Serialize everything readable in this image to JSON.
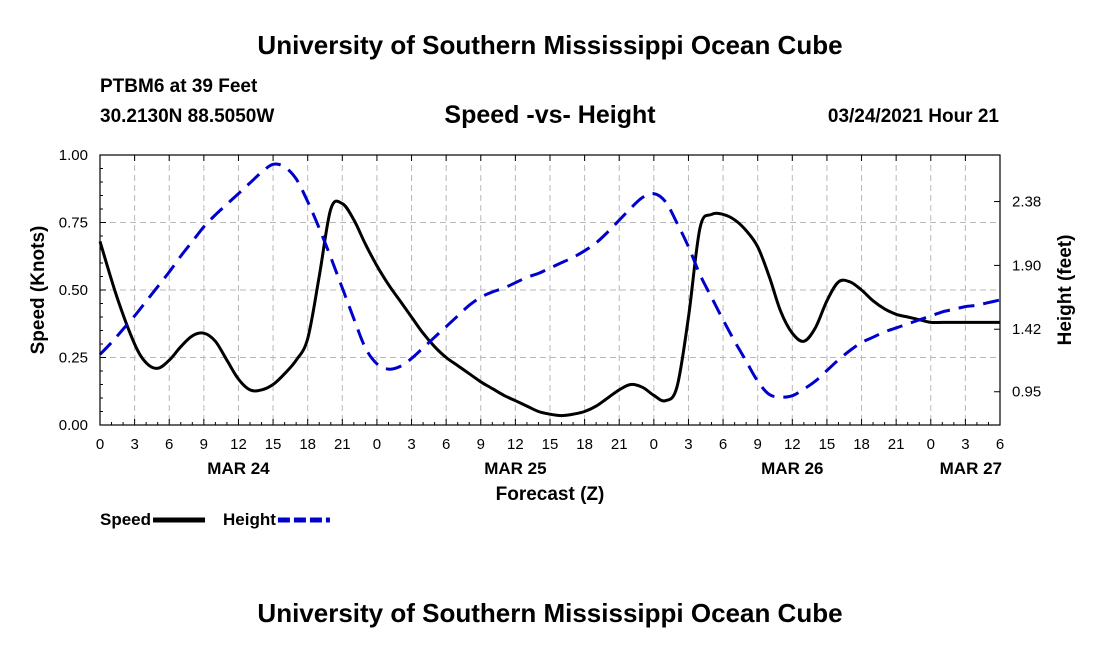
{
  "header": {
    "title": "University of Southern Mississippi Ocean Cube",
    "station": "PTBM6 at 39 Feet",
    "coordinates": "30.2130N 88.5050W",
    "subtitle": "Speed -vs- Height",
    "datetime": "03/24/2021 Hour 21"
  },
  "footer": {
    "title": "University of Southern Mississippi Ocean Cube"
  },
  "chart_data": {
    "type": "line",
    "title": "Speed -vs- Height",
    "xlabel": "Forecast (Z)",
    "ylabel_left": "Speed (Knots)",
    "ylabel_right": "Height (feet)",
    "x_unit": "hours from MAR 24 00Z",
    "xlim": [
      0,
      78
    ],
    "ylim_left": [
      0,
      1
    ],
    "ylim_right": [
      0.7,
      2.73
    ],
    "x_ticks": [
      0,
      3,
      6,
      9,
      12,
      15,
      18,
      21,
      24,
      27,
      30,
      33,
      36,
      39,
      42,
      45,
      48,
      51,
      54,
      57,
      60,
      63,
      66,
      69,
      72,
      75,
      78
    ],
    "x_tick_labels": [
      "0",
      "3",
      "6",
      "9",
      "12",
      "15",
      "18",
      "21",
      "0",
      "3",
      "6",
      "9",
      "12",
      "15",
      "18",
      "21",
      "0",
      "3",
      "6",
      "9",
      "12",
      "15",
      "18",
      "21",
      "0",
      "3",
      "6"
    ],
    "date_labels": [
      {
        "x": 12,
        "label": "MAR 24"
      },
      {
        "x": 36,
        "label": "MAR 25"
      },
      {
        "x": 60,
        "label": "MAR 26"
      },
      {
        "x": 78,
        "label": "MAR 27"
      }
    ],
    "y_left_ticks": [
      0,
      0.25,
      0.5,
      0.75,
      1.0
    ],
    "y_left_tick_labels": [
      "0.00",
      "0.25",
      "0.50",
      "0.75",
      "1.00"
    ],
    "y_right_ticks": [
      0.95,
      1.42,
      1.9,
      2.38
    ],
    "y_right_tick_labels": [
      "0.95",
      "1.42",
      "1.90",
      "2.38"
    ],
    "grid": true,
    "legend": [
      {
        "name": "Speed",
        "color": "#000000",
        "style": "solid"
      },
      {
        "name": "Height",
        "color": "#0000cc",
        "style": "dashed"
      }
    ],
    "series": [
      {
        "name": "Speed",
        "axis": "left",
        "color": "#000000",
        "x": [
          0,
          1.5,
          3,
          4,
          5,
          6,
          7,
          8,
          9,
          10,
          11,
          12,
          13,
          14,
          15,
          16,
          17,
          18,
          19,
          20,
          21,
          22,
          23,
          24,
          25,
          26,
          27,
          28,
          29,
          30,
          31,
          32,
          33,
          34,
          35,
          36,
          37,
          38,
          39,
          40,
          41,
          42,
          43,
          44,
          45,
          46,
          47,
          48,
          49,
          50,
          51,
          52,
          53,
          54,
          55,
          56,
          57,
          58,
          59,
          60,
          61,
          62,
          63,
          64,
          65,
          66,
          67,
          68,
          69,
          70,
          71,
          72,
          73,
          74,
          75,
          76,
          77,
          78
        ],
        "values": [
          0.68,
          0.47,
          0.3,
          0.23,
          0.21,
          0.24,
          0.29,
          0.33,
          0.34,
          0.31,
          0.24,
          0.17,
          0.13,
          0.13,
          0.15,
          0.19,
          0.24,
          0.32,
          0.55,
          0.8,
          0.82,
          0.76,
          0.67,
          0.59,
          0.52,
          0.46,
          0.4,
          0.34,
          0.29,
          0.25,
          0.22,
          0.19,
          0.16,
          0.135,
          0.11,
          0.09,
          0.07,
          0.05,
          0.04,
          0.035,
          0.04,
          0.05,
          0.07,
          0.1,
          0.13,
          0.15,
          0.14,
          0.11,
          0.09,
          0.14,
          0.4,
          0.73,
          0.78,
          0.78,
          0.76,
          0.72,
          0.66,
          0.55,
          0.42,
          0.34,
          0.31,
          0.36,
          0.46,
          0.53,
          0.53,
          0.5,
          0.46,
          0.43,
          0.41,
          0.4,
          0.39,
          0.38,
          0.38,
          0.38,
          0.38,
          0.38,
          0.38,
          0.38
        ]
      },
      {
        "name": "Height",
        "axis": "right",
        "color": "#0000cc",
        "x": [
          0,
          1,
          2,
          3,
          4,
          5,
          6,
          7,
          8,
          9,
          10,
          11,
          12,
          13,
          14,
          15,
          16,
          17,
          18,
          19,
          20,
          21,
          22,
          23,
          24,
          25,
          26,
          27,
          28,
          29,
          30,
          31,
          32,
          33,
          34,
          35,
          36,
          37,
          38,
          39,
          40,
          41,
          42,
          43,
          44,
          45,
          46,
          47,
          48,
          49,
          50,
          51,
          52,
          53,
          54,
          55,
          56,
          57,
          58,
          59,
          60,
          61,
          62,
          63,
          64,
          65,
          66,
          67,
          68,
          69,
          70,
          71,
          72,
          73,
          74,
          75,
          76,
          77,
          78
        ],
        "values": [
          1.23,
          1.32,
          1.42,
          1.52,
          1.63,
          1.74,
          1.85,
          1.97,
          2.08,
          2.19,
          2.28,
          2.36,
          2.44,
          2.52,
          2.6,
          2.66,
          2.64,
          2.55,
          2.38,
          2.18,
          1.96,
          1.73,
          1.5,
          1.28,
          1.16,
          1.12,
          1.14,
          1.2,
          1.28,
          1.36,
          1.44,
          1.52,
          1.6,
          1.66,
          1.7,
          1.73,
          1.77,
          1.81,
          1.84,
          1.88,
          1.92,
          1.96,
          2.01,
          2.07,
          2.15,
          2.24,
          2.33,
          2.41,
          2.44,
          2.38,
          2.22,
          2.04,
          1.83,
          1.66,
          1.49,
          1.33,
          1.18,
          1.03,
          0.93,
          0.91,
          0.92,
          0.97,
          1.03,
          1.11,
          1.19,
          1.26,
          1.32,
          1.36,
          1.4,
          1.43,
          1.46,
          1.49,
          1.52,
          1.55,
          1.57,
          1.59,
          1.6,
          1.62,
          1.64
        ]
      }
    ]
  }
}
